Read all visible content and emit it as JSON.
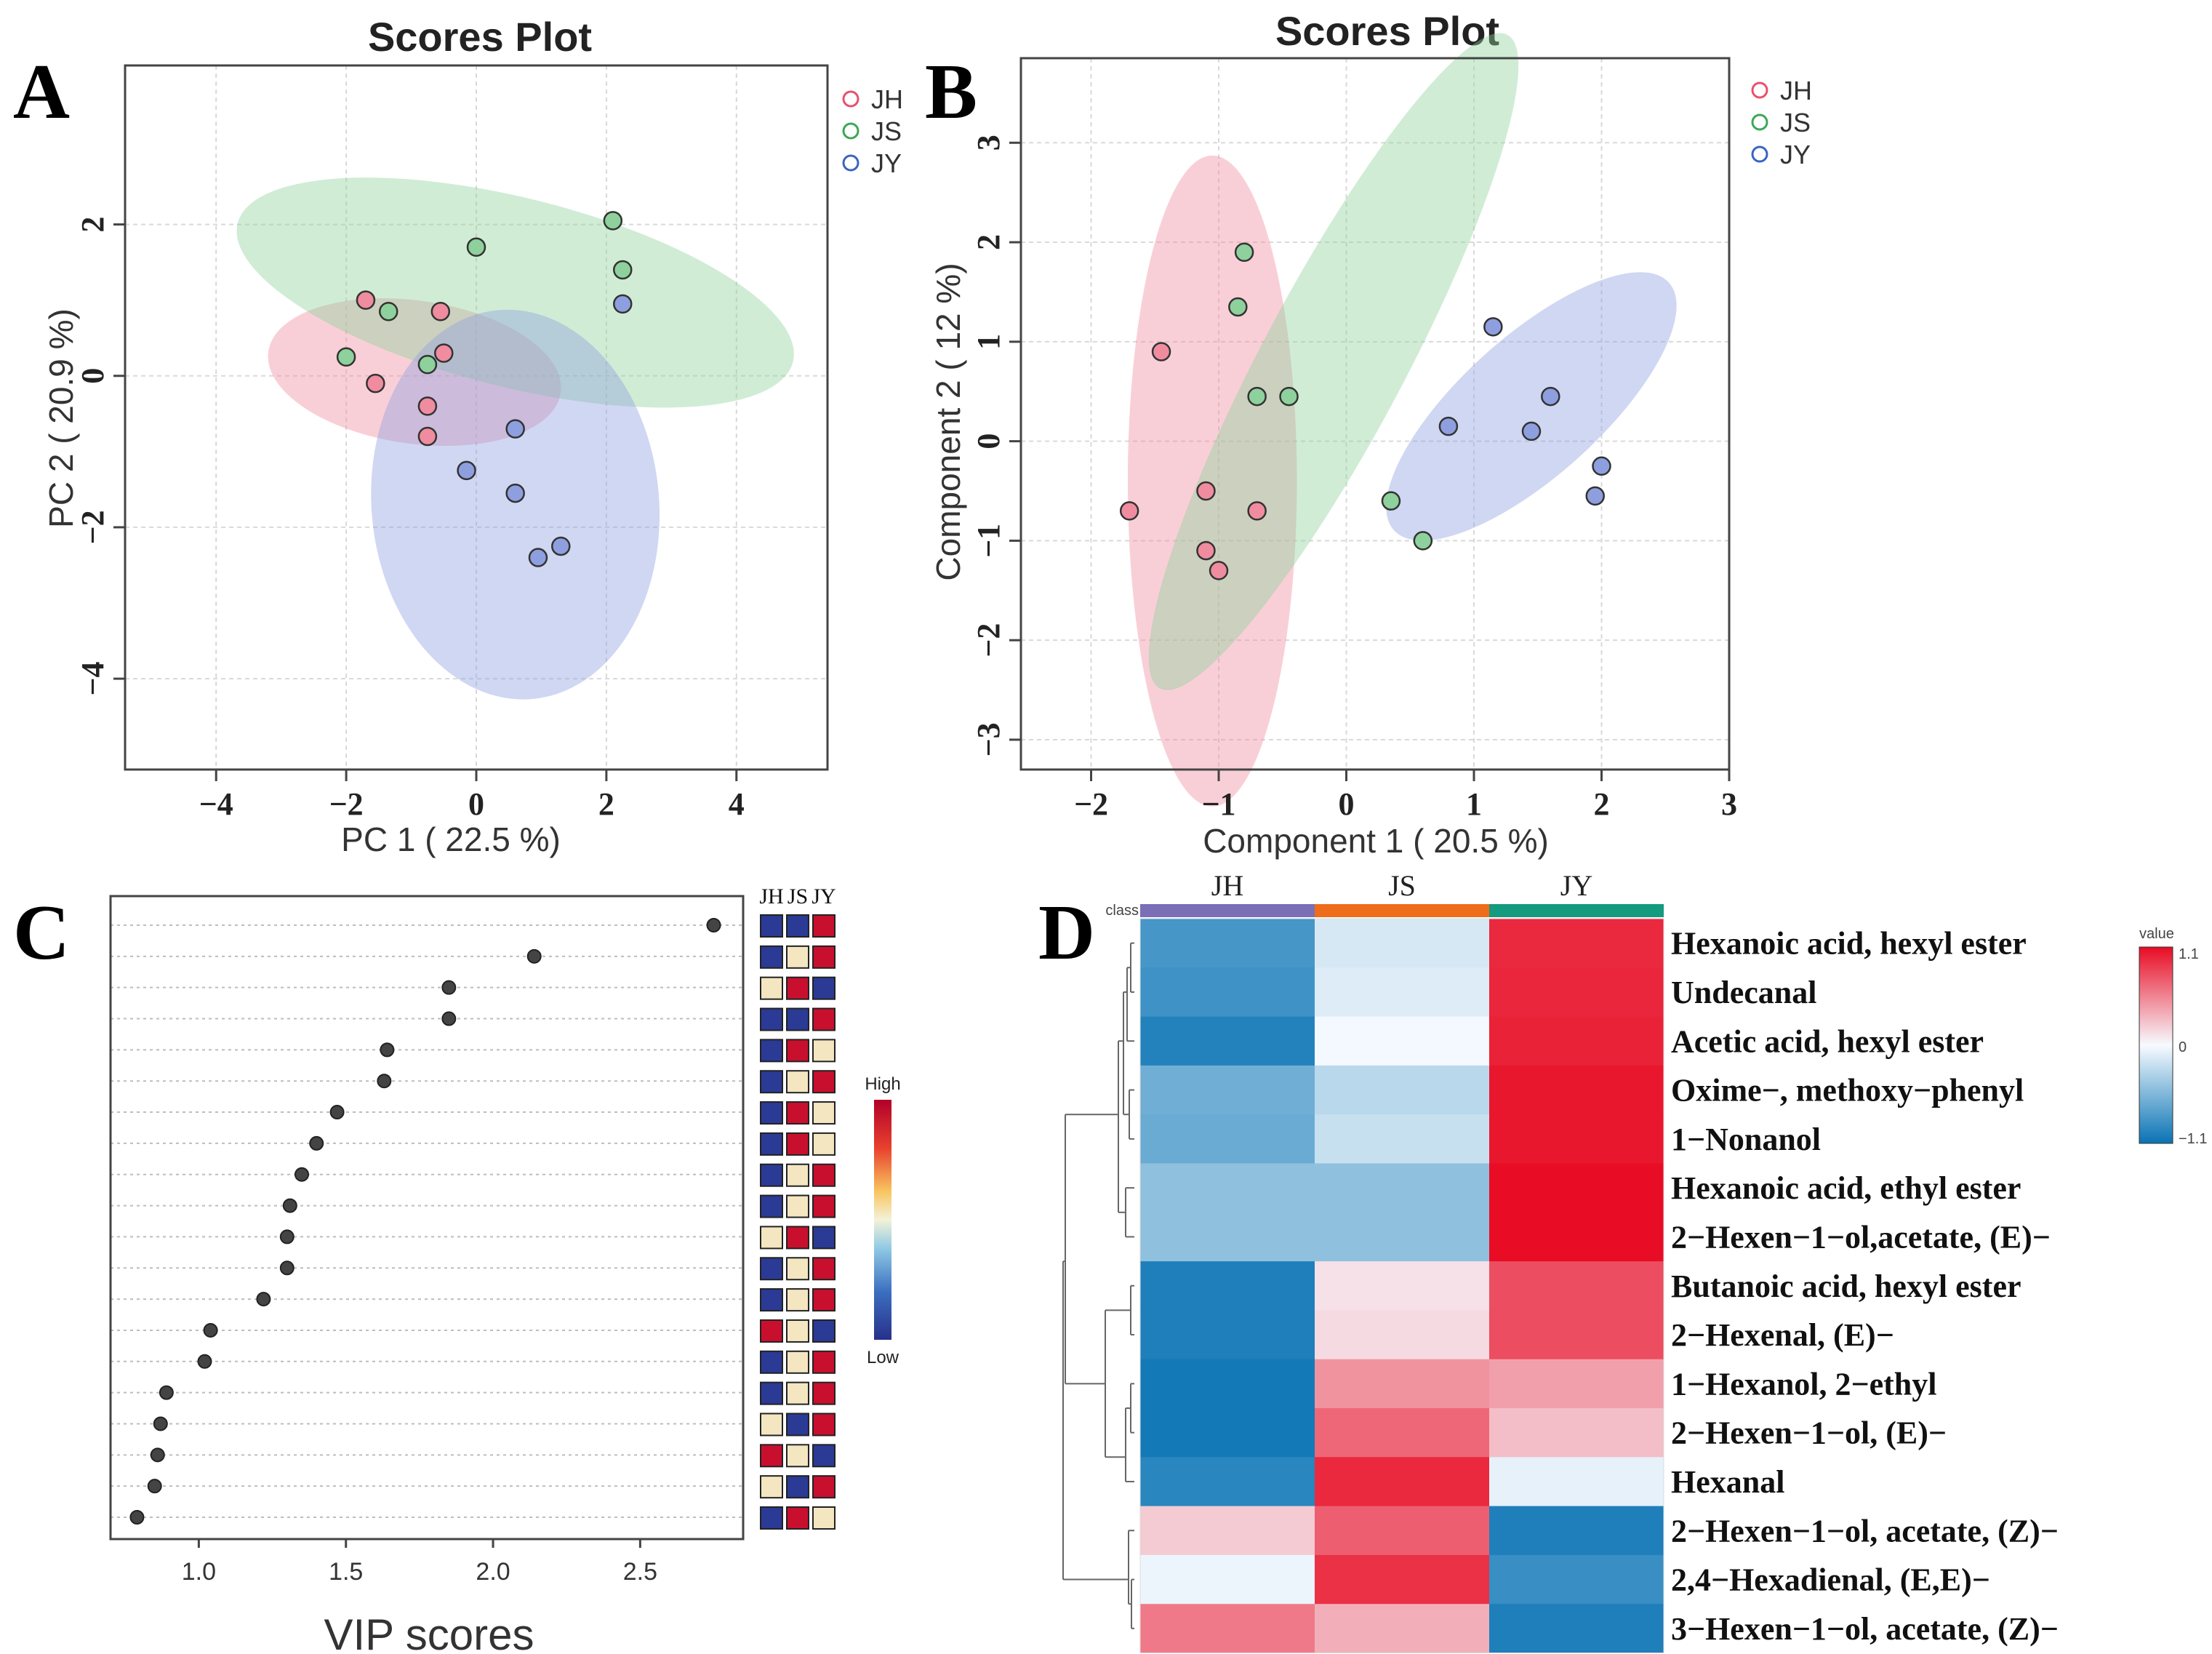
{
  "panels": {
    "a": {
      "letter": "A"
    },
    "b": {
      "letter": "B"
    },
    "c": {
      "letter": "C"
    },
    "d": {
      "letter": "D"
    }
  },
  "chart_data": [
    {
      "id": "A",
      "type": "scatter",
      "title": "Scores Plot",
      "xlabel": "PC 1 ( 22.5 %)",
      "ylabel": "PC 2 ( 20.9 %)",
      "xlim": [
        -5.4,
        5.4
      ],
      "ylim": [
        -5.2,
        4.1
      ],
      "xticks": [
        -4,
        -2,
        0,
        2,
        4
      ],
      "yticks": [
        -4,
        -2,
        0,
        2
      ],
      "xtick_labels": [
        "−4",
        "−2",
        "0",
        "2",
        "4"
      ],
      "ytick_labels": [
        "−4",
        "−2",
        "0",
        "2"
      ],
      "grid": true,
      "legend": "top-right",
      "series": [
        {
          "name": "JH",
          "color": "#e8506e",
          "fill": "#f08ca0",
          "ellipse": {
            "cx": -0.95,
            "cy": 0.05,
            "rx": 1.1,
            "ry": 1.95,
            "angle_deg": -82
          },
          "points": [
            [
              -1.7,
              1.0
            ],
            [
              -0.55,
              0.85
            ],
            [
              -0.5,
              0.3
            ],
            [
              -1.55,
              -0.1
            ],
            [
              -0.75,
              -0.4
            ],
            [
              -0.75,
              -0.8
            ]
          ]
        },
        {
          "name": "JS",
          "color": "#3aa857",
          "fill": "#8ed19c",
          "ellipse": {
            "cx": 0.6,
            "cy": 1.1,
            "rx": 4.4,
            "ry": 1.25,
            "angle_deg": 14
          },
          "points": [
            [
              0.0,
              1.7
            ],
            [
              2.1,
              2.05
            ],
            [
              2.25,
              1.4
            ],
            [
              -1.35,
              0.85
            ],
            [
              -2.0,
              0.25
            ],
            [
              -0.75,
              0.15
            ]
          ]
        },
        {
          "name": "JY",
          "color": "#3b63c4",
          "fill": "#8e9fe0",
          "ellipse": {
            "cx": 0.6,
            "cy": -1.7,
            "rx": 3.0,
            "ry": 1.9,
            "angle_deg": -95
          },
          "points": [
            [
              2.25,
              0.95
            ],
            [
              0.6,
              -0.7
            ],
            [
              -0.15,
              -1.25
            ],
            [
              0.6,
              -1.55
            ],
            [
              1.3,
              -2.25
            ],
            [
              0.95,
              -2.4
            ]
          ]
        }
      ]
    },
    {
      "id": "B",
      "type": "scatter",
      "title": "Scores Plot",
      "xlabel": "Component 1 ( 20.5 %)",
      "ylabel": "Component 2 ( 12 %)",
      "xlim": [
        -2.55,
        3.0
      ],
      "ylim": [
        -3.3,
        3.85
      ],
      "xticks": [
        -2,
        -1,
        0,
        1,
        2,
        3
      ],
      "yticks": [
        -3,
        -2,
        -1,
        0,
        1,
        2,
        3
      ],
      "xtick_labels": [
        "−2",
        "−1",
        "0",
        "1",
        "2",
        "3"
      ],
      "ytick_labels": [
        "−3",
        "−2",
        "−1",
        "0",
        "1",
        "2",
        "3"
      ],
      "grid": true,
      "legend": "top-right",
      "series": [
        {
          "name": "JH",
          "color": "#e8506e",
          "fill": "#f08ca0",
          "ellipse": {
            "cx": -1.05,
            "cy": -0.4,
            "rx": 2.55,
            "ry": 0.85,
            "angle_deg": -90
          },
          "points": [
            [
              -1.45,
              0.9
            ],
            [
              -1.7,
              -0.7
            ],
            [
              -1.1,
              -0.5
            ],
            [
              -0.7,
              -0.7
            ],
            [
              -1.1,
              -1.1
            ],
            [
              -1.0,
              -1.3
            ]
          ]
        },
        {
          "name": "JS",
          "color": "#3aa857",
          "fill": "#8ed19c",
          "ellipse": {
            "cx": -0.1,
            "cy": 0.8,
            "rx": 2.9,
            "ry": 0.72,
            "angle_deg": -62
          },
          "points": [
            [
              -0.8,
              1.9
            ],
            [
              -0.85,
              1.35
            ],
            [
              -0.7,
              0.45
            ],
            [
              -0.45,
              0.45
            ],
            [
              0.35,
              -0.6
            ],
            [
              0.6,
              -1.0
            ]
          ]
        },
        {
          "name": "JY",
          "color": "#3b63c4",
          "fill": "#8e9fe0",
          "ellipse": {
            "cx": 1.45,
            "cy": 0.35,
            "rx": 1.45,
            "ry": 0.7,
            "angle_deg": -42
          },
          "points": [
            [
              1.15,
              1.15
            ],
            [
              1.6,
              0.45
            ],
            [
              0.8,
              0.15
            ],
            [
              1.45,
              0.1
            ],
            [
              2.0,
              -0.25
            ],
            [
              1.95,
              -0.55
            ]
          ]
        }
      ]
    },
    {
      "id": "C",
      "type": "scatter",
      "xlabel": "VIP scores",
      "xlim": [
        0.7,
        2.85
      ],
      "xticks": [
        1.0,
        1.5,
        2.0,
        2.5
      ],
      "xtick_labels": [
        "1.0",
        "1.5",
        "2.0",
        "2.5"
      ],
      "vip": [
        2.75,
        2.14,
        1.85,
        1.85,
        1.64,
        1.63,
        1.47,
        1.4,
        1.35,
        1.31,
        1.3,
        1.3,
        1.22,
        1.04,
        1.02,
        0.89,
        0.87,
        0.86,
        0.85,
        0.79
      ],
      "groups": [
        "JH",
        "JS",
        "JY"
      ],
      "group_levels": [
        [
          "low",
          "low",
          "high"
        ],
        [
          "low",
          "mid",
          "high"
        ],
        [
          "mid",
          "high",
          "low"
        ],
        [
          "low",
          "low",
          "high"
        ],
        [
          "low",
          "high",
          "mid"
        ],
        [
          "low",
          "mid",
          "high"
        ],
        [
          "low",
          "high",
          "mid"
        ],
        [
          "low",
          "high",
          "mid"
        ],
        [
          "low",
          "mid",
          "high"
        ],
        [
          "low",
          "mid",
          "high"
        ],
        [
          "mid",
          "high",
          "low"
        ],
        [
          "low",
          "mid",
          "high"
        ],
        [
          "low",
          "mid",
          "high"
        ],
        [
          "high",
          "mid",
          "low"
        ],
        [
          "low",
          "mid",
          "high"
        ],
        [
          "low",
          "mid",
          "high"
        ],
        [
          "mid",
          "low",
          "high"
        ],
        [
          "high",
          "mid",
          "low"
        ],
        [
          "mid",
          "low",
          "high"
        ],
        [
          "low",
          "high",
          "mid"
        ]
      ],
      "level_colors": {
        "high": "#c8102e",
        "mid": "#f3e6c0",
        "low": "#2b3a95"
      },
      "colorbar_labels": {
        "high": "High",
        "low": "Low"
      }
    },
    {
      "id": "D",
      "type": "heatmap",
      "class_label": "class",
      "columns": [
        "JH",
        "JS",
        "JY"
      ],
      "column_colors": [
        "#7a6fb6",
        "#ef6c1a",
        "#149a7e"
      ],
      "rows": [
        "Hexanoic acid, hexyl ester",
        "Undecanal",
        "Acetic acid, hexyl ester",
        "Oxime−, methoxy−phenyl",
        "1−Nonanol",
        "Hexanoic acid, ethyl ester",
        "2−Hexen−1−ol,acetate, (E)−",
        "Butanoic acid, hexyl ester",
        "2−Hexenal, (E)−",
        "1−Hexanol, 2−ethyl",
        "2−Hexen−1−ol, (E)−",
        "Hexanal",
        "2−Hexen−1−ol, acetate, (Z)−",
        "2,4−Hexadienal, (E,E)−",
        "3−Hexen−1−ol, acetate, (Z)−"
      ],
      "values": [
        [
          -0.82,
          -0.15,
          0.97
        ],
        [
          -0.85,
          -0.12,
          0.98
        ],
        [
          -0.98,
          -0.02,
          1.0
        ],
        [
          -0.62,
          -0.28,
          1.05
        ],
        [
          -0.65,
          -0.22,
          1.05
        ],
        [
          -0.48,
          -0.48,
          1.1
        ],
        [
          -0.48,
          -0.48,
          1.1
        ],
        [
          -1.0,
          0.12,
          0.8
        ],
        [
          -1.0,
          0.15,
          0.8
        ],
        [
          -1.05,
          0.48,
          0.42
        ],
        [
          -1.05,
          0.68,
          0.28
        ],
        [
          -0.95,
          0.97,
          -0.08
        ],
        [
          0.22,
          0.72,
          -1.0
        ],
        [
          -0.05,
          0.93,
          -0.88
        ],
        [
          0.6,
          0.35,
          -1.0
        ]
      ],
      "scale": {
        "label": "value",
        "max": 1.1,
        "mid": 0,
        "min": -1.1,
        "tick_labels": [
          "1.1",
          "0",
          "−1.1"
        ]
      }
    }
  ]
}
